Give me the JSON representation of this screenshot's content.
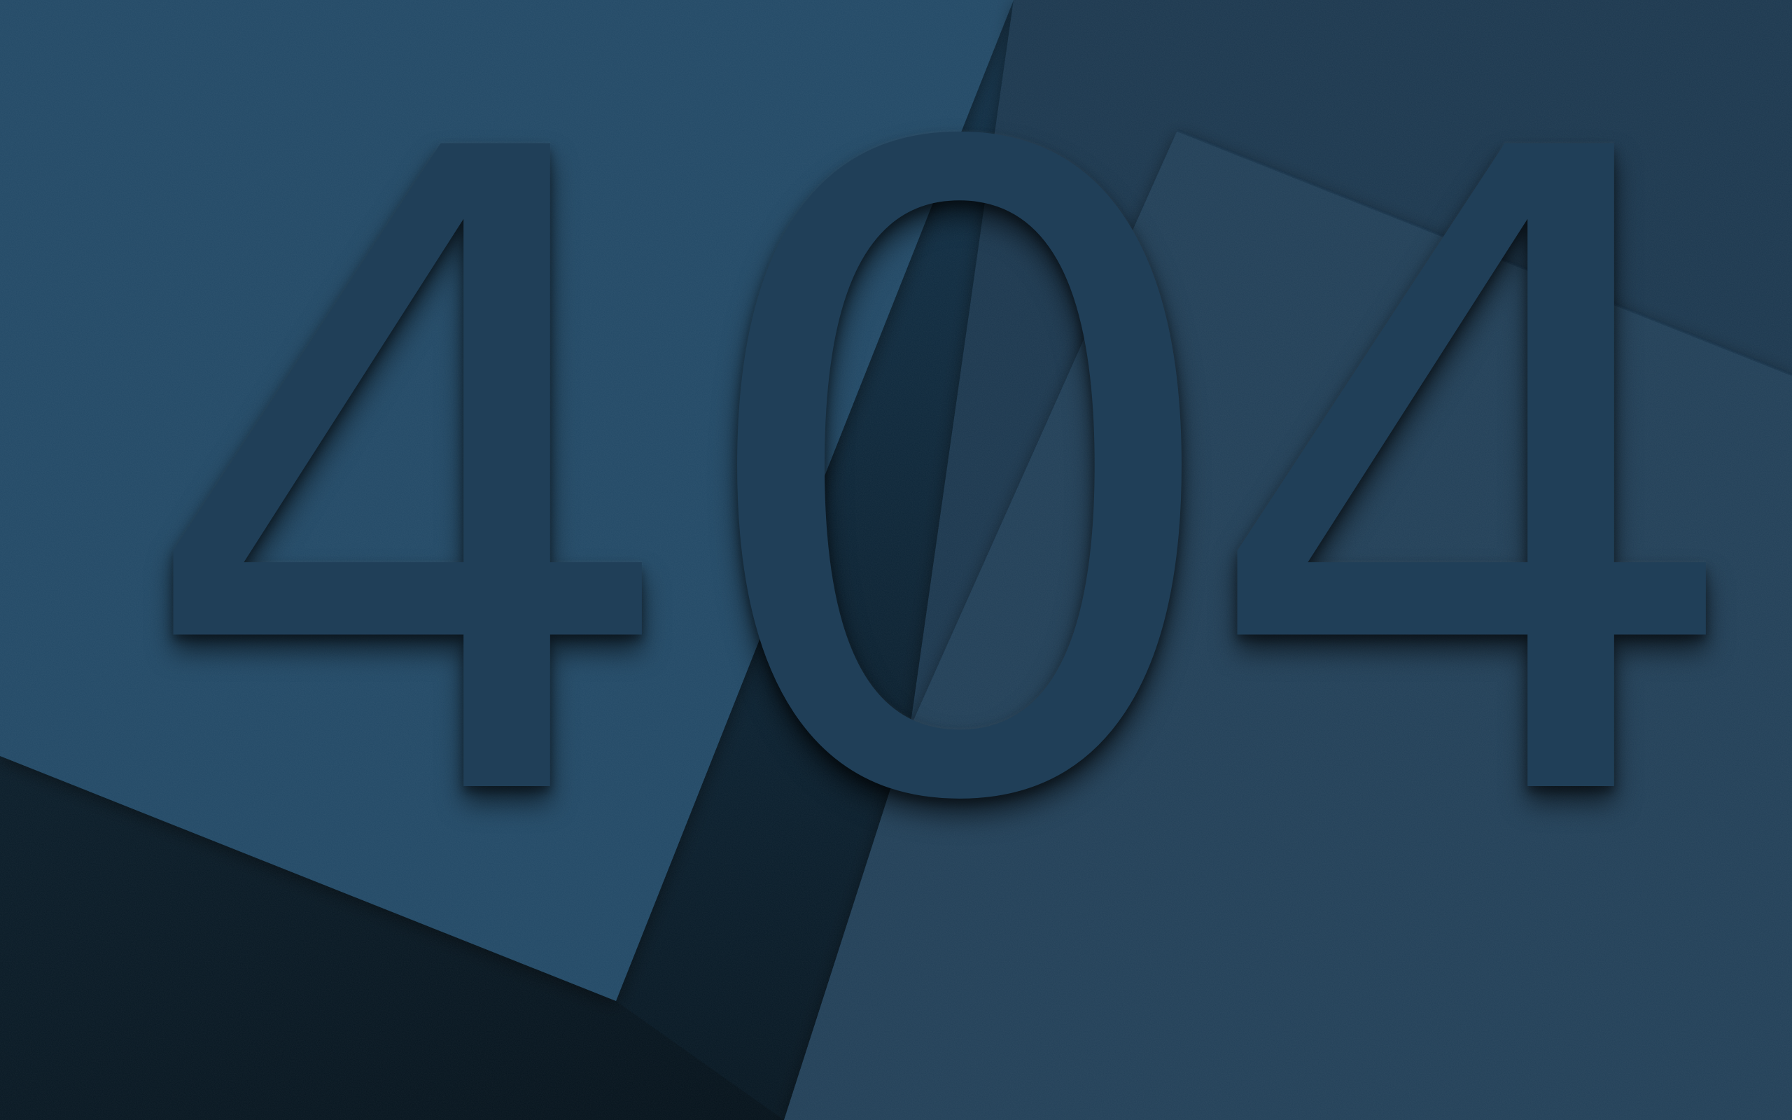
{
  "error_page": {
    "digits": [
      "4",
      "0",
      "4"
    ]
  },
  "colors": {
    "base": "#1f3d56",
    "upper_left_panel": "#234a66",
    "upper_right_panel": "#1d3a52",
    "lower_right_panel": "#213f58",
    "dark_band": "#0d2434",
    "darkest_corner": "#07161f",
    "digit_face": "#203f58"
  }
}
